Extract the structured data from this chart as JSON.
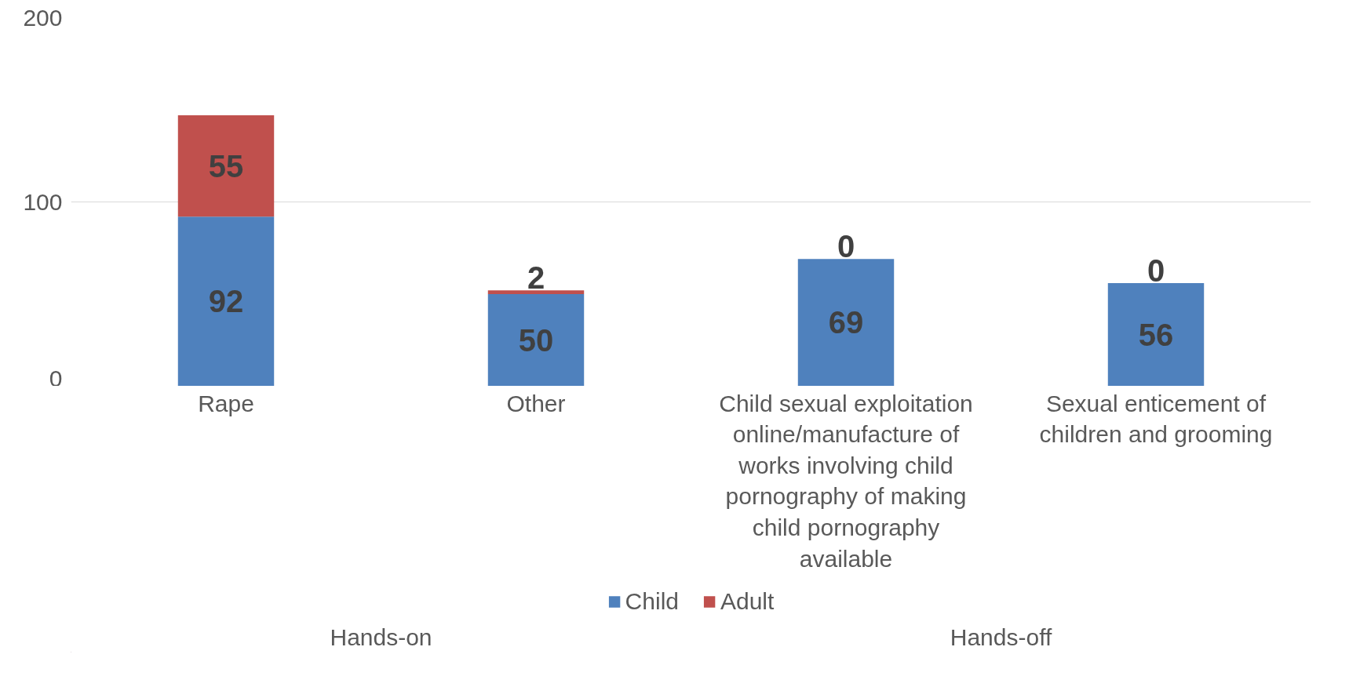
{
  "chart_data": {
    "type": "bar",
    "stacked": true,
    "categories": [
      "Rape",
      "Other",
      "Child sexual exploitation online/manufacture of works involving child pornography of making child pornography available",
      "Sexual enticement of children and grooming"
    ],
    "series": [
      {
        "name": "Child",
        "color": "#4f81bd",
        "values": [
          92,
          50,
          69,
          56
        ]
      },
      {
        "name": "Adult",
        "color": "#c0504d",
        "values": [
          55,
          2,
          0,
          0
        ]
      }
    ],
    "annotations": [
      "Hands-on",
      "Hands-off"
    ],
    "ylim": [
      0,
      200
    ],
    "yticks": [
      0,
      100,
      200
    ],
    "grid": "y",
    "legend": "bottom",
    "data_labels": true
  }
}
